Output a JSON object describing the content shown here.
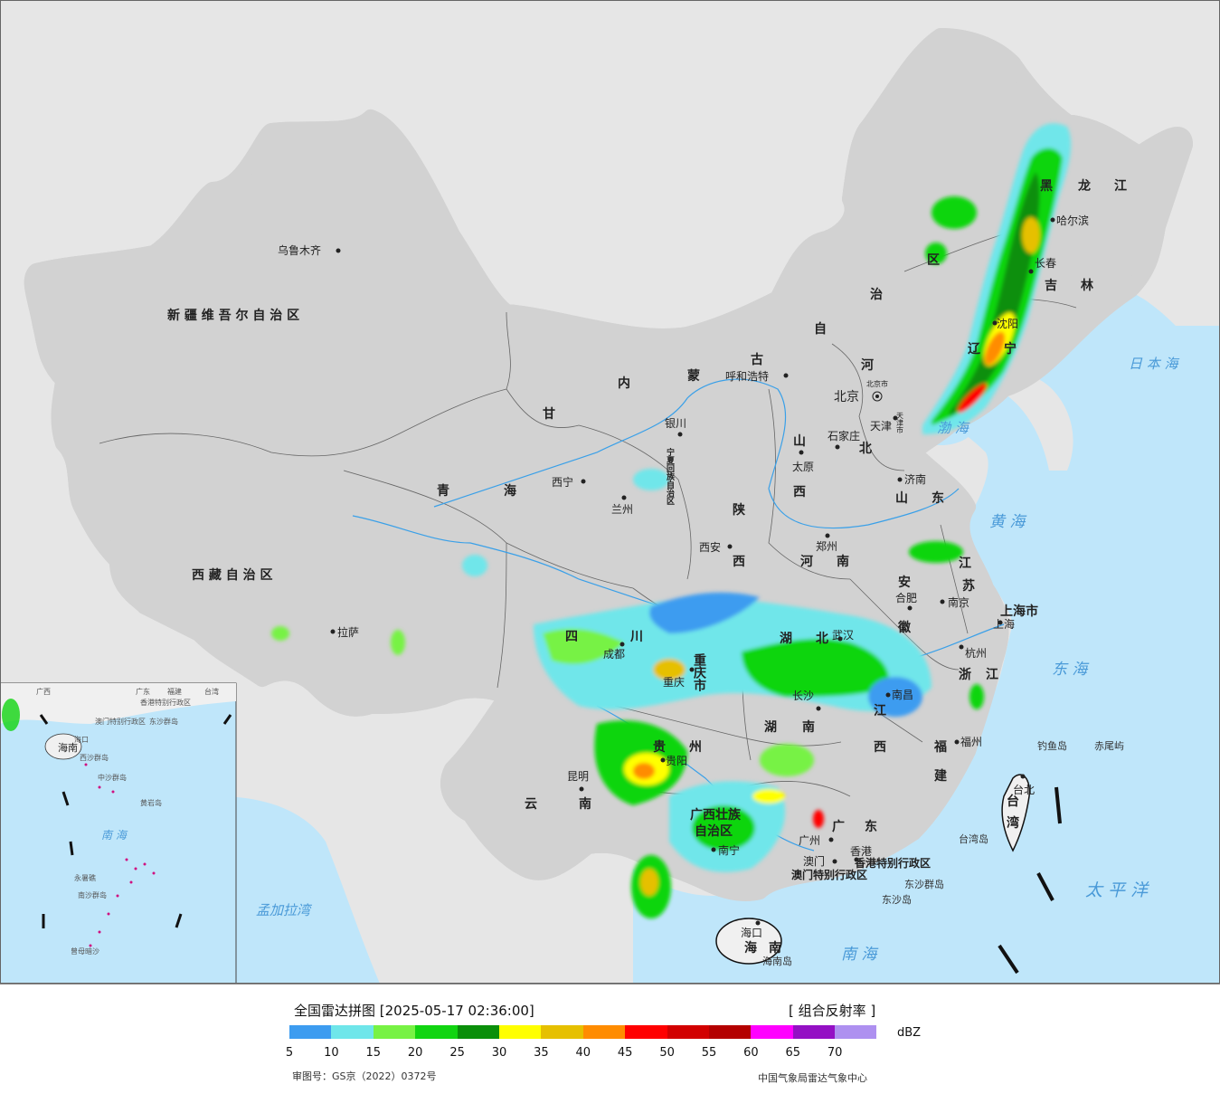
{
  "legend": {
    "title": "全国雷达拼图 [2025-05-17 02:36:00]",
    "product": "[ 组合反射率 ]",
    "unit": "dBZ",
    "ticks": [
      "5",
      "10",
      "15",
      "20",
      "25",
      "30",
      "35",
      "40",
      "45",
      "50",
      "55",
      "60",
      "65",
      "70"
    ],
    "colors": [
      "#3d9cf0",
      "#6fe6ea",
      "#77f244",
      "#11d511",
      "#0a8f0a",
      "#ffff00",
      "#e6c000",
      "#ff8c00",
      "#ff0000",
      "#d20000",
      "#b40000",
      "#ff00ff",
      "#9410c4",
      "#ae90f0"
    ],
    "approval": "审图号：GS京（2022）0372号",
    "source": "中国气象局雷达气象中心"
  },
  "regions": {
    "xinjiang": "新 疆 维 吾 尔 自 治 区",
    "xizang": "西 藏 自 治 区",
    "qinghai": "青",
    "qinghai2": "海",
    "gansu": "甘",
    "neimenggu": [
      "内",
      "蒙",
      "古",
      "自",
      "治",
      "区"
    ],
    "heilongjiang": [
      "黑",
      "龙",
      "江"
    ],
    "jilin": [
      "吉",
      "林"
    ],
    "liaoning": [
      "辽",
      "宁"
    ],
    "hebei": [
      "河",
      "北"
    ],
    "shanxi": [
      "山",
      "西"
    ],
    "shaanxi": [
      "陕",
      "西"
    ],
    "shandong": [
      "山",
      "东"
    ],
    "henan": [
      "河",
      "南"
    ],
    "sichuan": [
      "四",
      "川"
    ],
    "chongqing": "重庆市",
    "hubei": [
      "湖",
      "北"
    ],
    "hunan": [
      "湖",
      "南"
    ],
    "jiangxi": [
      "江",
      "西"
    ],
    "anhui": [
      "安",
      "徽"
    ],
    "jiangsu": [
      "江",
      "苏"
    ],
    "zhejiang": [
      "浙",
      "江"
    ],
    "fujian": [
      "福",
      "建"
    ],
    "guizhou": [
      "贵",
      "州"
    ],
    "yunnan": [
      "云",
      "南"
    ],
    "guangxi": [
      "广西壮族",
      "自治区"
    ],
    "guangdong": [
      "广",
      "东"
    ],
    "hainan": [
      "海",
      "南"
    ],
    "shanghai": "上海市",
    "taiwan": [
      "台",
      "湾"
    ],
    "ningxia": "宁夏回族自治区",
    "hongkong": "香港特别行政区",
    "macau": "澳门特别行政区"
  },
  "cities": [
    {
      "name": "乌鲁木齐"
    },
    {
      "name": "拉萨"
    },
    {
      "name": "西宁"
    },
    {
      "name": "兰州"
    },
    {
      "name": "银川"
    },
    {
      "name": "呼和浩特"
    },
    {
      "name": "北京"
    },
    {
      "name": "北京市"
    },
    {
      "name": "天津"
    },
    {
      "name": "天津市"
    },
    {
      "name": "石家庄"
    },
    {
      "name": "太原"
    },
    {
      "name": "济南"
    },
    {
      "name": "郑州"
    },
    {
      "name": "西安"
    },
    {
      "name": "成都"
    },
    {
      "name": "重庆"
    },
    {
      "name": "武汉"
    },
    {
      "name": "合肥"
    },
    {
      "name": "南京"
    },
    {
      "name": "上海"
    },
    {
      "name": "杭州"
    },
    {
      "name": "南昌"
    },
    {
      "name": "长沙"
    },
    {
      "name": "福州"
    },
    {
      "name": "台北"
    },
    {
      "name": "贵阳"
    },
    {
      "name": "昆明"
    },
    {
      "name": "南宁"
    },
    {
      "name": "广州"
    },
    {
      "name": "香港"
    },
    {
      "name": "澳门"
    },
    {
      "name": "海口"
    },
    {
      "name": "哈尔滨"
    },
    {
      "name": "长春"
    },
    {
      "name": "沈阳"
    }
  ],
  "seas": {
    "bohai": "渤 海",
    "huanghai": "黄 海",
    "donghai": "东 海",
    "nanhai": "南 海",
    "taipingyang": "太 平 洋",
    "ribenhai": "日 本 海",
    "mengjialawan": "孟加拉湾"
  },
  "islands": {
    "diaoyu": "钓鱼岛",
    "chiwei": "赤尾屿",
    "dongsha": "东沙群岛",
    "dongsha2": "东沙岛",
    "hainandao": "海南岛",
    "taiwandao": "台湾岛"
  },
  "inset": {
    "hainan": "海南",
    "nanhai": "南 海",
    "labels": [
      "广西",
      "广东",
      "福建",
      "台湾",
      "香港特别行政区",
      "澳门特别行政区",
      "东沙群岛",
      "西沙群岛",
      "中沙群岛",
      "南沙群岛",
      "黄岩岛",
      "永暑礁",
      "曾母暗沙",
      "海口"
    ]
  }
}
